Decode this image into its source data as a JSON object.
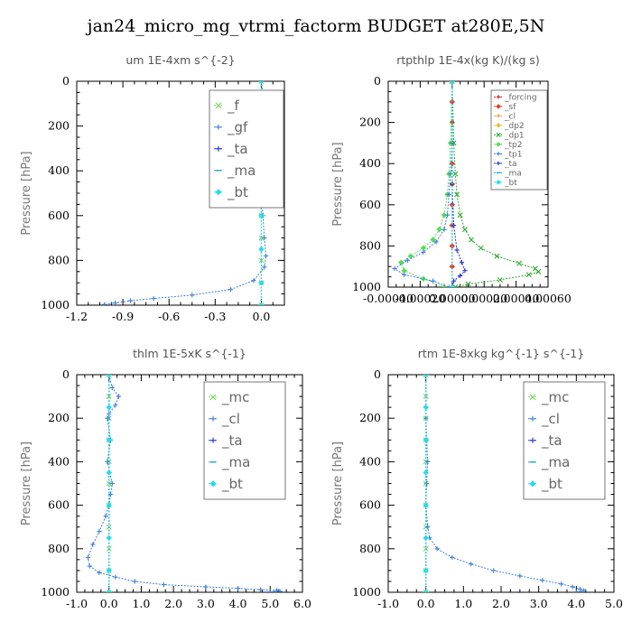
{
  "title": "jan24_micro_mg_vtrmi_factorm  BUDGET at280E,5N",
  "chart_data": [
    {
      "type": "line",
      "title": "um   1E-4xm  s^{-2}",
      "ylabel": "Pressure [hPa]",
      "xlim": [
        -1.2,
        0.15
      ],
      "ylim": [
        1000,
        0
      ],
      "xticks": [
        -1.2,
        -0.9,
        -0.6,
        -0.3,
        0.0
      ],
      "xtick_labels": [
        "-1.2",
        "-0.9",
        "-0.6",
        "-0.3",
        "0.0"
      ],
      "yticks": [
        0,
        200,
        400,
        600,
        800,
        1000
      ],
      "legend": "top-right",
      "series": [
        {
          "name": "_f",
          "color": "#7fd36b",
          "marker": "x",
          "x": [
            0,
            0,
            0,
            0,
            0,
            0,
            0,
            0,
            0,
            0,
            0
          ],
          "y": [
            0,
            100,
            200,
            300,
            400,
            500,
            600,
            700,
            800,
            900,
            1000
          ]
        },
        {
          "name": "_gf",
          "color": "#3f7fd8",
          "marker": "plus",
          "x": [
            0.0,
            0.01,
            0.02,
            0.03,
            0.02,
            0.0,
            -0.01,
            0.0,
            0.0,
            0.01,
            0.02,
            0.03,
            0.02,
            -0.05,
            -0.2,
            -0.45,
            -0.7,
            -0.85,
            -0.95,
            -1.02
          ],
          "y": [
            0,
            50,
            100,
            130,
            150,
            200,
            300,
            400,
            500,
            600,
            700,
            780,
            830,
            890,
            930,
            955,
            970,
            980,
            990,
            997
          ]
        },
        {
          "name": "_ta",
          "color": "#2233cc",
          "marker": "plus",
          "x": [
            0,
            0,
            0,
            0,
            0,
            0,
            0,
            0
          ],
          "y": [
            0,
            150,
            300,
            450,
            600,
            750,
            900,
            1000
          ]
        },
        {
          "name": "_ma",
          "color": "#22aacc",
          "marker": "dash",
          "x": [
            0,
            0,
            0,
            0,
            0,
            0,
            0,
            0
          ],
          "y": [
            0,
            150,
            300,
            450,
            600,
            750,
            900,
            1000
          ]
        },
        {
          "name": "_bt",
          "color": "#22ddee",
          "marker": "diamond",
          "x": [
            0,
            0,
            0,
            0,
            0,
            0,
            0,
            0
          ],
          "y": [
            0,
            150,
            300,
            450,
            600,
            750,
            900,
            1000
          ]
        }
      ]
    },
    {
      "type": "line",
      "title": "rtpthlp   1E-4x(kg K)/(kg s)",
      "ylabel": "Pressure [hPa]",
      "xlim": [
        -0.0004,
        0.0006
      ],
      "ylim": [
        1000,
        0
      ],
      "xticks": [
        -0.0004,
        -0.0002,
        0.0,
        0.0002,
        0.0004,
        0.0006
      ],
      "xtick_labels": [
        "-0.00040",
        "-0.00020",
        "0.00000",
        "0.00020",
        "0.00040",
        "0.00060"
      ],
      "yticks": [
        0,
        200,
        400,
        600,
        800,
        1000
      ],
      "legend": "top-right",
      "series": [
        {
          "name": "_forcing",
          "color": "#cc2222",
          "marker": "plus",
          "x": [
            0,
            0,
            0,
            0,
            0,
            0,
            0,
            0,
            0,
            0,
            0
          ],
          "y": [
            0,
            100,
            200,
            300,
            400,
            500,
            600,
            700,
            800,
            900,
            1000
          ]
        },
        {
          "name": "_sf",
          "color": "#ee3322",
          "marker": "diamond",
          "x": [
            0,
            0,
            0,
            0,
            0,
            0,
            0,
            0,
            0,
            0,
            0
          ],
          "y": [
            0,
            100,
            200,
            300,
            400,
            500,
            600,
            700,
            800,
            900,
            1000
          ]
        },
        {
          "name": "_cl",
          "color": "#e8a040",
          "marker": "plus",
          "x": [
            0,
            0
          ],
          "y": [
            0,
            1000
          ]
        },
        {
          "name": "_dp2",
          "color": "#e8c030",
          "marker": "diamond",
          "x": [
            0,
            0
          ],
          "y": [
            0,
            1000
          ]
        },
        {
          "name": "_dp1",
          "color": "#33aa33",
          "marker": "x",
          "x": [
            0.0,
            1e-05,
            2e-05,
            3e-05,
            5e-05,
            8e-05,
            0.00012,
            0.00018,
            0.00028,
            0.00042,
            0.00052,
            0.00054,
            0.00048,
            0.0003,
            0.0001,
            2e-05
          ],
          "y": [
            0,
            300,
            450,
            550,
            650,
            720,
            770,
            810,
            850,
            885,
            910,
            925,
            940,
            965,
            985,
            1000
          ]
        },
        {
          "name": "_tp2",
          "color": "#55dd55",
          "marker": "diamond",
          "x": [
            0.0,
            -1e-05,
            -2e-05,
            -3e-05,
            -5e-05,
            -8e-05,
            -0.00012,
            -0.00018,
            -0.00026,
            -0.00032,
            -0.0003,
            -0.00018,
            -5e-05
          ],
          "y": [
            0,
            300,
            450,
            550,
            650,
            720,
            770,
            810,
            850,
            880,
            920,
            960,
            1000
          ]
        },
        {
          "name": "_tp1",
          "color": "#3f7fd8",
          "marker": "plus",
          "x": [
            0.0,
            0.0,
            -1e-05,
            -2e-05,
            -3e-05,
            -5e-05,
            -0.0001,
            -0.00018,
            -0.00028,
            -0.00036,
            -0.0003,
            -0.00012,
            -2e-05
          ],
          "y": [
            0,
            300,
            450,
            550,
            650,
            720,
            780,
            830,
            870,
            910,
            940,
            970,
            1000
          ]
        },
        {
          "name": "_ta",
          "color": "#2233cc",
          "marker": "plus",
          "x": [
            0,
            0,
            1e-05,
            3e-05,
            6e-05,
            8e-05,
            5e-05,
            1e-05,
            0.0
          ],
          "y": [
            0,
            500,
            700,
            820,
            880,
            920,
            945,
            970,
            1000
          ]
        },
        {
          "name": "_ma",
          "color": "#22aacc",
          "marker": "dash",
          "x": [
            0,
            0
          ],
          "y": [
            0,
            1000
          ]
        },
        {
          "name": "_bt",
          "color": "#22ddee",
          "marker": "diamond",
          "x": [
            0,
            0
          ],
          "y": [
            0,
            1000
          ]
        }
      ]
    },
    {
      "type": "line",
      "title": "thlm   1E-5xK  s^{-1}",
      "ylabel": "Pressure [hPa]",
      "xlim": [
        -1.0,
        6.0
      ],
      "ylim": [
        1000,
        0
      ],
      "xticks": [
        -1.0,
        0.0,
        1.0,
        2.0,
        3.0,
        4.0,
        5.0,
        6.0
      ],
      "xtick_labels": [
        "-1.0",
        "0.0",
        "1.0",
        "2.0",
        "3.0",
        "4.0",
        "5.0",
        "6.0"
      ],
      "yticks": [
        0,
        200,
        400,
        600,
        800,
        1000
      ],
      "legend": "top-right",
      "series": [
        {
          "name": "_mc",
          "color": "#7fd36b",
          "marker": "x",
          "x": [
            0,
            0,
            0,
            0,
            0,
            0,
            0,
            0,
            0,
            0,
            0
          ],
          "y": [
            0,
            100,
            200,
            300,
            400,
            500,
            600,
            700,
            800,
            900,
            1000
          ]
        },
        {
          "name": "_cl",
          "color": "#3f7fd8",
          "marker": "plus",
          "x": [
            0.0,
            0.1,
            0.3,
            0.2,
            0.0,
            -0.05,
            0.05,
            -0.05,
            0.1,
            0.05,
            0.0,
            -0.1,
            -0.3,
            -0.5,
            -0.65,
            -0.6,
            -0.3,
            0.2,
            0.8,
            1.7,
            3.0,
            4.0,
            4.7,
            5.2,
            5.3,
            5.0
          ],
          "y": [
            0,
            60,
            100,
            140,
            180,
            200,
            300,
            400,
            500,
            550,
            600,
            650,
            720,
            780,
            840,
            880,
            910,
            930,
            950,
            965,
            975,
            982,
            988,
            992,
            995,
            998
          ]
        },
        {
          "name": "_ta",
          "color": "#2233cc",
          "marker": "plus",
          "x": [
            0,
            0,
            0,
            0,
            0,
            0,
            0,
            0
          ],
          "y": [
            0,
            150,
            300,
            450,
            600,
            750,
            900,
            1000
          ]
        },
        {
          "name": "_ma",
          "color": "#22aacc",
          "marker": "dash",
          "x": [
            0,
            0,
            0,
            0,
            0,
            0,
            0,
            0
          ],
          "y": [
            0,
            150,
            300,
            450,
            600,
            750,
            900,
            1000
          ]
        },
        {
          "name": "_bt",
          "color": "#22ddee",
          "marker": "diamond",
          "x": [
            0,
            0,
            0,
            0,
            0,
            0,
            0,
            0
          ],
          "y": [
            0,
            150,
            300,
            450,
            600,
            750,
            900,
            1000
          ]
        }
      ]
    },
    {
      "type": "line",
      "title": "rtm   1E-8xkg  kg^{-1}  s^{-1}",
      "ylabel": "Pressure [hPa]",
      "xlim": [
        -1.0,
        5.0
      ],
      "ylim": [
        1000,
        0
      ],
      "xticks": [
        -1.0,
        0.0,
        1.0,
        2.0,
        3.0,
        4.0,
        5.0
      ],
      "xtick_labels": [
        "-1.0",
        "0.0",
        "1.0",
        "2.0",
        "3.0",
        "4.0",
        "5.0"
      ],
      "yticks": [
        0,
        200,
        400,
        600,
        800,
        1000
      ],
      "legend": "top-right",
      "series": [
        {
          "name": "_mc",
          "color": "#7fd36b",
          "marker": "x",
          "x": [
            0,
            0,
            0,
            0,
            0,
            0,
            0,
            0,
            0,
            0,
            0
          ],
          "y": [
            0,
            100,
            200,
            300,
            400,
            500,
            600,
            700,
            800,
            900,
            1000
          ]
        },
        {
          "name": "_cl",
          "color": "#3f7fd8",
          "marker": "plus",
          "x": [
            0.0,
            0.0,
            0.02,
            0.05,
            0.02,
            0.0,
            0.05,
            0.1,
            0.3,
            0.7,
            1.2,
            1.8,
            2.5,
            3.1,
            3.6,
            3.9,
            4.1,
            4.2,
            4.0
          ],
          "y": [
            0,
            200,
            300,
            400,
            500,
            600,
            700,
            750,
            800,
            840,
            870,
            900,
            925,
            945,
            962,
            975,
            985,
            992,
            998
          ]
        },
        {
          "name": "_ta",
          "color": "#2233cc",
          "marker": "plus",
          "x": [
            0,
            0,
            0,
            0,
            0,
            0,
            0,
            0
          ],
          "y": [
            0,
            150,
            300,
            450,
            600,
            750,
            900,
            1000
          ]
        },
        {
          "name": "_ma",
          "color": "#22aacc",
          "marker": "dash",
          "x": [
            0,
            0,
            0,
            0,
            0,
            0,
            0,
            0
          ],
          "y": [
            0,
            150,
            300,
            450,
            600,
            750,
            900,
            1000
          ]
        },
        {
          "name": "_bt",
          "color": "#22ddee",
          "marker": "diamond",
          "x": [
            0,
            0,
            0,
            0,
            0,
            0,
            0,
            0
          ],
          "y": [
            0,
            150,
            300,
            450,
            600,
            750,
            900,
            1000
          ]
        }
      ]
    }
  ]
}
